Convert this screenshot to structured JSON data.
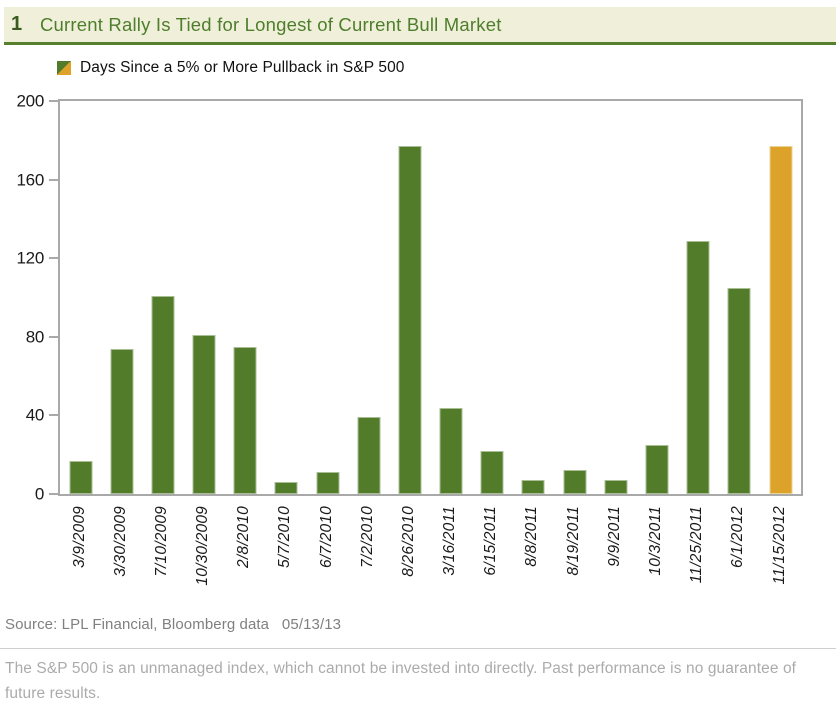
{
  "header": {
    "number": "1",
    "title": "Current Rally Is Tied for Longest of Current Bull Market"
  },
  "legend": {
    "label": "Days Since a 5% or More Pullback in S&P 500",
    "swatch_icon": "diagonal-split-square-icon"
  },
  "chart_data": {
    "type": "bar",
    "title": "Current Rally Is Tied for Longest of Current Bull Market",
    "series_name": "Days Since a 5% or More Pullback in S&P 500",
    "categories": [
      "3/9/2009",
      "3/30/2009",
      "7/10/2009",
      "10/30/2009",
      "2/8/2010",
      "5/7/2010",
      "6/7/2010",
      "7/2/2010",
      "8/26/2010",
      "3/16/2011",
      "6/15/2011",
      "8/8/2011",
      "8/19/2011",
      "9/9/2011",
      "10/3/2011",
      "11/25/2011",
      "6/1/2012",
      "11/15/2012"
    ],
    "values": [
      17,
      74,
      101,
      81,
      75,
      6,
      11,
      39,
      177,
      44,
      22,
      7,
      12,
      7,
      25,
      129,
      105,
      177
    ],
    "highlight_index": 17,
    "xlabel": "",
    "ylabel": "",
    "ylim": [
      0,
      200
    ],
    "yticks": [
      0,
      40,
      80,
      120,
      160,
      200
    ],
    "grid": false,
    "legend_position": "top-left",
    "colors": {
      "bar": "#527c2a",
      "highlight": "#dda22a",
      "axis": "#a9a9a9",
      "tick_text": "#1a1a1a"
    }
  },
  "footer": {
    "source": "Source: LPL Financial, Bloomberg data   05/13/13",
    "disclaimer": "The S&P 500 is an unmanaged index, which cannot be invested into directly. Past performance is no guarantee of future results."
  },
  "colors": {
    "header_bg": "#f0efda",
    "header_text": "#4e7e2c",
    "header_rule": "#567f2e",
    "source_text": "#808080",
    "disclaimer_text": "#ababab"
  }
}
